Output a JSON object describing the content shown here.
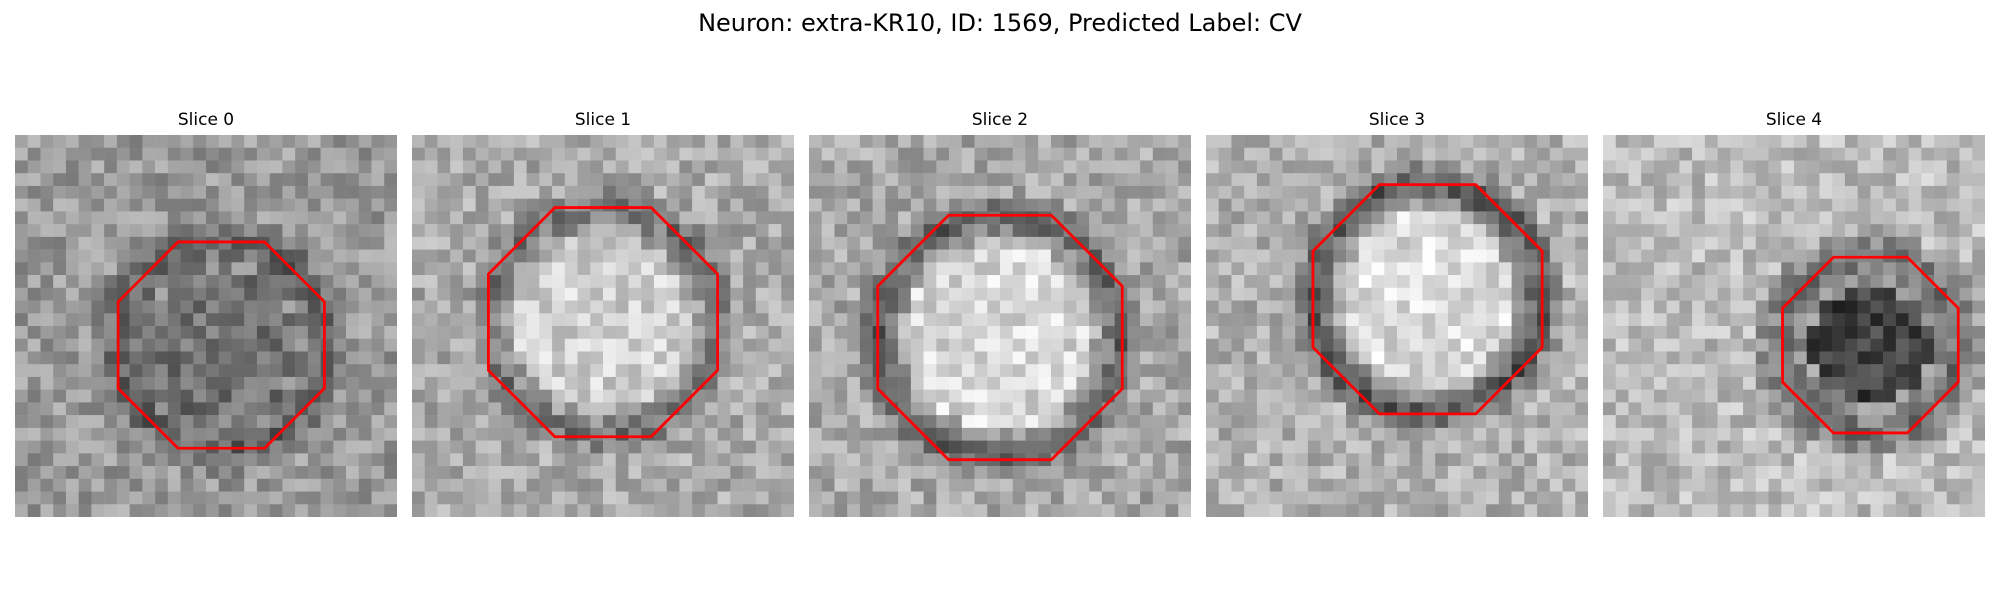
{
  "figure": {
    "title": "Neuron: extra-KR10, ID: 1569, Predicted Label: CV"
  },
  "slices": [
    {
      "title": "Slice 0",
      "background": "#9a9a9a",
      "center_tone": "#707070",
      "ring_tone": "#3a3a3a",
      "ring_strength": 0.55,
      "outline_color": "#ff0000",
      "contour_radius": 0.27,
      "contour_cx": 0.54,
      "contour_cy": 0.55
    },
    {
      "title": "Slice 1",
      "background": "#aaaaaa",
      "center_tone": "#d0d0d0",
      "ring_tone": "#4a4a4a",
      "ring_strength": 0.7,
      "outline_color": "#ff0000",
      "contour_radius": 0.3,
      "contour_cx": 0.5,
      "contour_cy": 0.49
    },
    {
      "title": "Slice 2",
      "background": "#a8a8a8",
      "center_tone": "#d8d8d8",
      "ring_tone": "#3a3a3a",
      "ring_strength": 0.8,
      "outline_color": "#ff0000",
      "contour_radius": 0.32,
      "contour_cx": 0.5,
      "contour_cy": 0.53
    },
    {
      "title": "Slice 3",
      "background": "#b0b0b0",
      "center_tone": "#dddddd",
      "ring_tone": "#303030",
      "ring_strength": 0.85,
      "outline_color": "#ff0000",
      "contour_radius": 0.3,
      "contour_cx": 0.58,
      "contour_cy": 0.43
    },
    {
      "title": "Slice 4",
      "background": "#bcbcbc",
      "center_tone": "#404040",
      "ring_tone": "#303030",
      "ring_strength": 0.4,
      "outline_color": "#ff0000",
      "contour_radius": 0.23,
      "contour_cx": 0.7,
      "contour_cy": 0.55
    }
  ]
}
